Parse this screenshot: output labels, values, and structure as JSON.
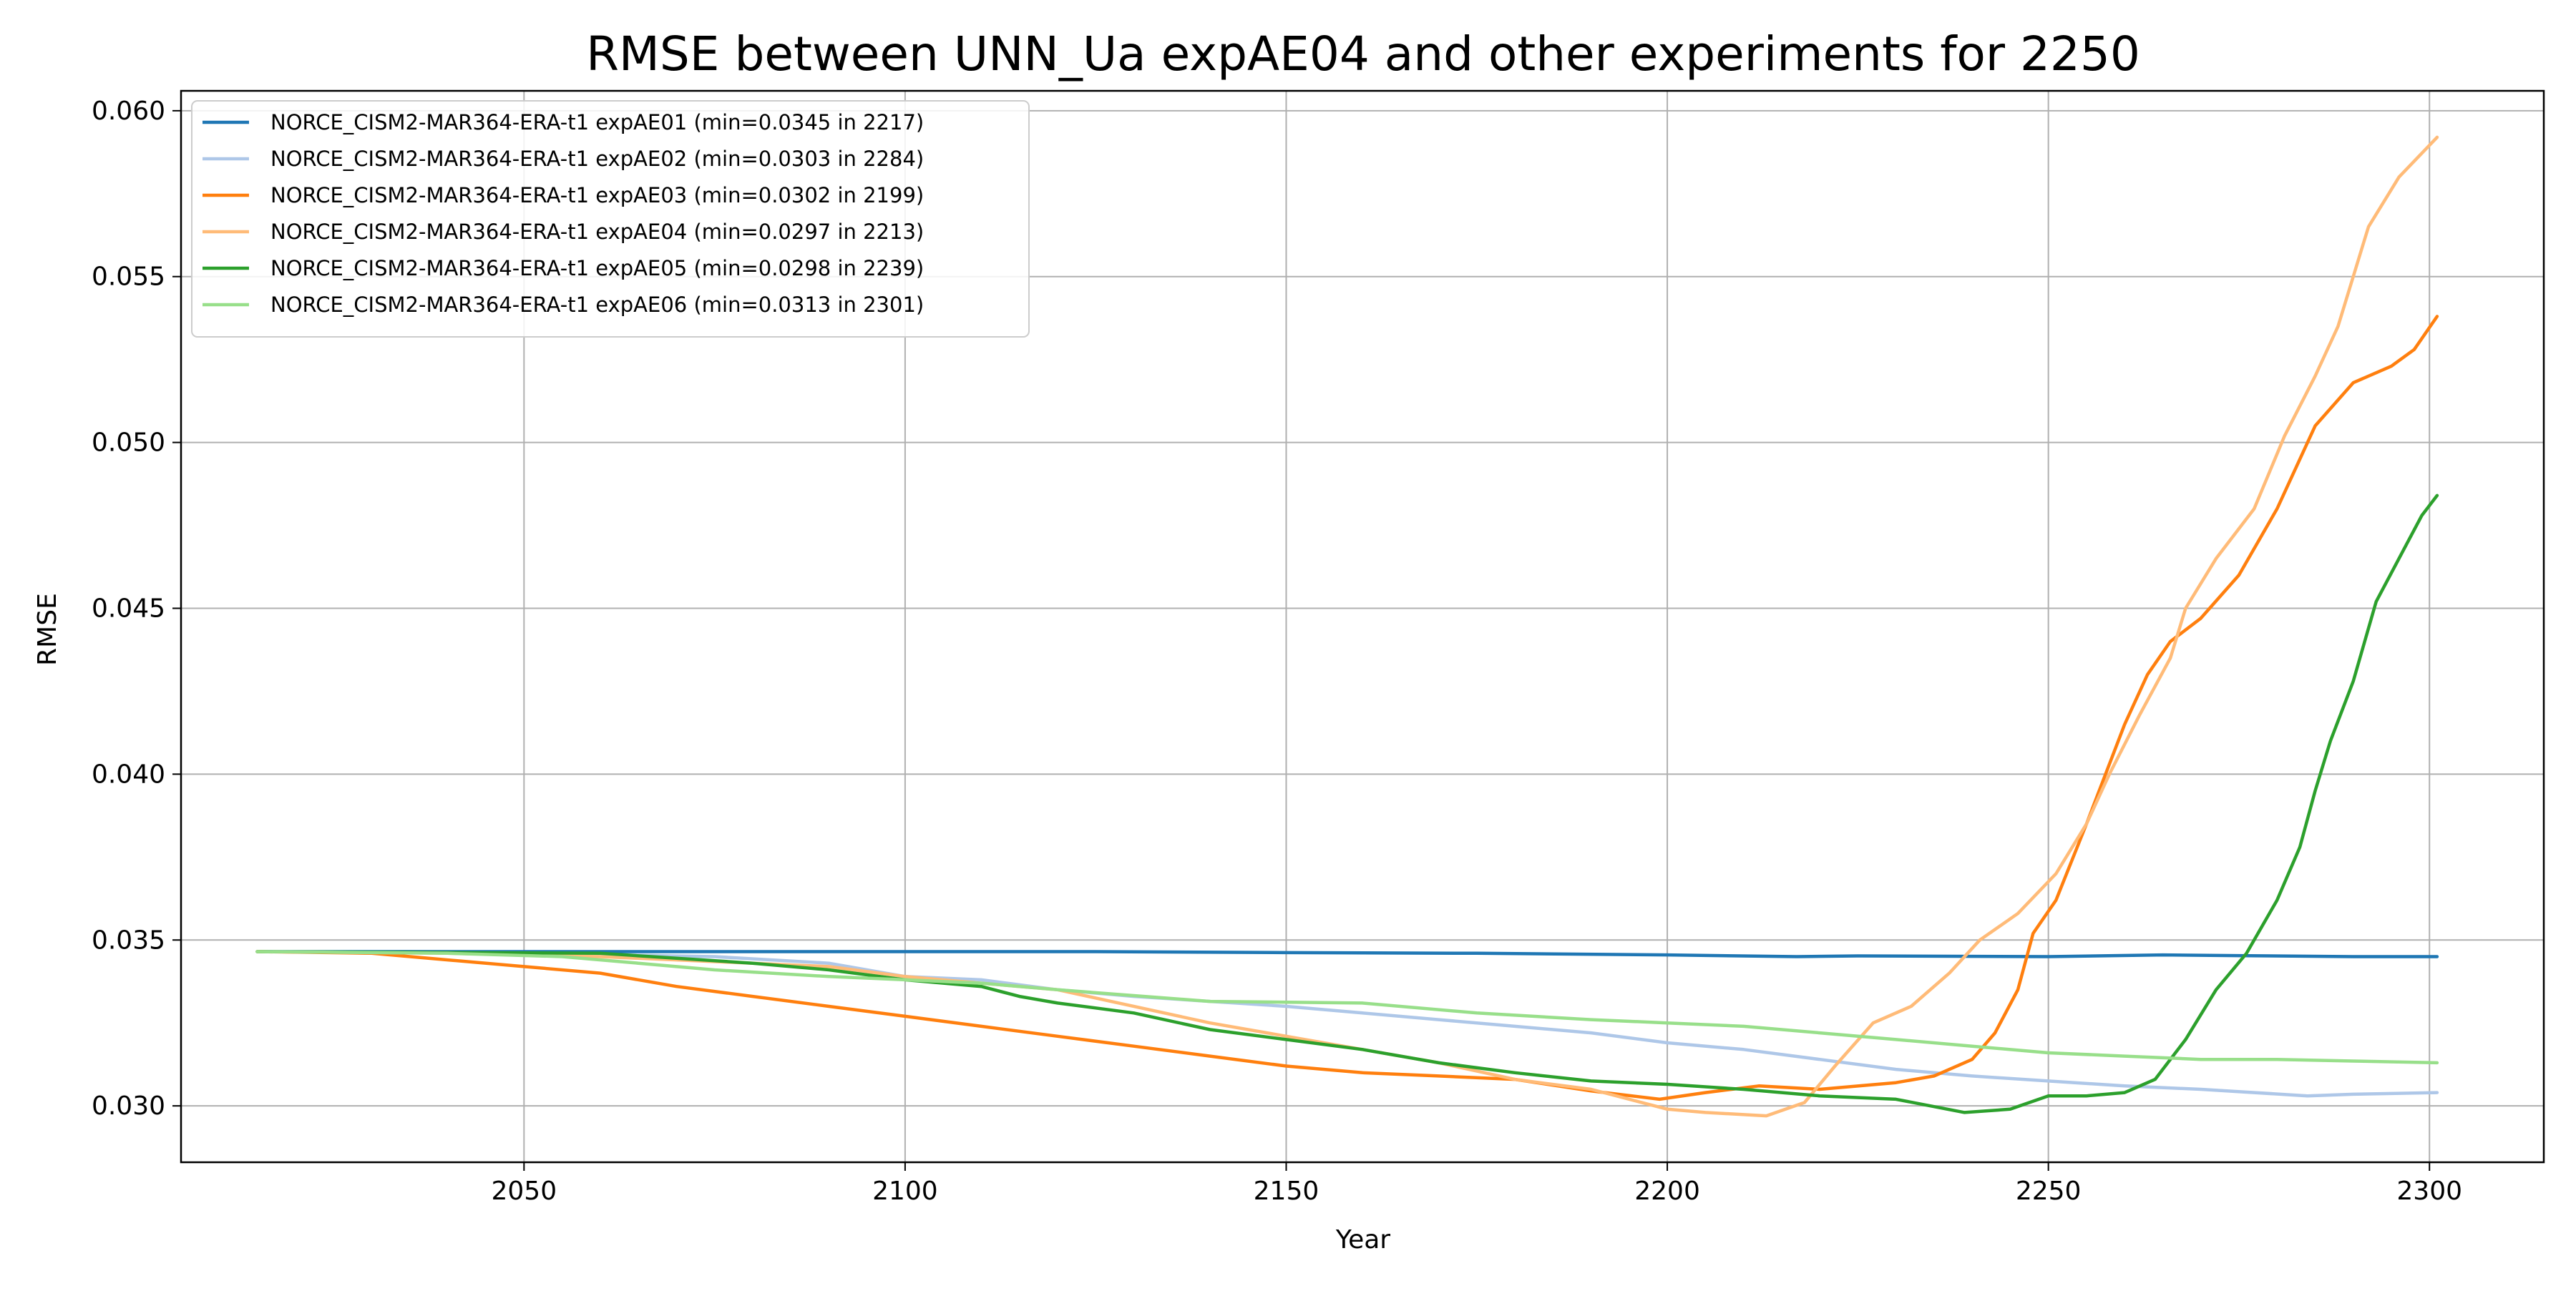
{
  "chart_data": {
    "type": "line",
    "title": "RMSE between UNN_Ua expAE04 and other experiments for 2250",
    "xlabel": "Year",
    "ylabel": "RMSE",
    "xlim": [
      2005,
      2315
    ],
    "ylim": [
      0.0283,
      0.0606
    ],
    "xticks": [
      2050,
      2100,
      2150,
      2200,
      2250,
      2300
    ],
    "yticks": [
      0.03,
      0.035,
      0.04,
      0.045,
      0.05,
      0.055,
      0.06
    ],
    "ytick_labels": [
      "0.030",
      "0.035",
      "0.040",
      "0.045",
      "0.050",
      "0.055",
      "0.060"
    ],
    "grid": true,
    "legend_position": "upper-left",
    "series": [
      {
        "name": "NORCE_CISM2-MAR364-ERA-t1 expAE01 (min=0.0345 in 2217)",
        "color": "#1f77b4",
        "points": [
          [
            2015,
            0.03465
          ],
          [
            2050,
            0.03465
          ],
          [
            2075,
            0.03465
          ],
          [
            2100,
            0.03465
          ],
          [
            2125,
            0.03465
          ],
          [
            2150,
            0.03462
          ],
          [
            2175,
            0.0346
          ],
          [
            2200,
            0.03455
          ],
          [
            2217,
            0.0345
          ],
          [
            2225,
            0.03452
          ],
          [
            2250,
            0.0345
          ],
          [
            2265,
            0.03455
          ],
          [
            2275,
            0.03453
          ],
          [
            2290,
            0.0345
          ],
          [
            2301,
            0.0345
          ]
        ]
      },
      {
        "name": "NORCE_CISM2-MAR364-ERA-t1 expAE02 (min=0.0303 in 2284)",
        "color": "#aec7e8",
        "points": [
          [
            2015,
            0.03465
          ],
          [
            2050,
            0.0346
          ],
          [
            2075,
            0.0345
          ],
          [
            2090,
            0.0343
          ],
          [
            2100,
            0.0339
          ],
          [
            2110,
            0.0338
          ],
          [
            2120,
            0.0335
          ],
          [
            2130,
            0.0333
          ],
          [
            2140,
            0.03315
          ],
          [
            2150,
            0.033
          ],
          [
            2160,
            0.0328
          ],
          [
            2170,
            0.0326
          ],
          [
            2180,
            0.0324
          ],
          [
            2190,
            0.0322
          ],
          [
            2200,
            0.0319
          ],
          [
            2210,
            0.0317
          ],
          [
            2220,
            0.0314
          ],
          [
            2230,
            0.0311
          ],
          [
            2240,
            0.0309
          ],
          [
            2250,
            0.03075
          ],
          [
            2260,
            0.0306
          ],
          [
            2270,
            0.0305
          ],
          [
            2284,
            0.0303
          ],
          [
            2290,
            0.03035
          ],
          [
            2301,
            0.0304
          ]
        ]
      },
      {
        "name": "NORCE_CISM2-MAR364-ERA-t1 expAE03 (min=0.0302 in 2199)",
        "color": "#ff7f0e",
        "points": [
          [
            2015,
            0.03465
          ],
          [
            2030,
            0.0346
          ],
          [
            2040,
            0.0344
          ],
          [
            2050,
            0.0342
          ],
          [
            2060,
            0.034
          ],
          [
            2070,
            0.0336
          ],
          [
            2080,
            0.0333
          ],
          [
            2090,
            0.033
          ],
          [
            2100,
            0.0327
          ],
          [
            2110,
            0.0324
          ],
          [
            2120,
            0.0321
          ],
          [
            2130,
            0.0318
          ],
          [
            2140,
            0.0315
          ],
          [
            2150,
            0.0312
          ],
          [
            2160,
            0.031
          ],
          [
            2170,
            0.0309
          ],
          [
            2180,
            0.0308
          ],
          [
            2190,
            0.03045
          ],
          [
            2199,
            0.0302
          ],
          [
            2205,
            0.0304
          ],
          [
            2212,
            0.0306
          ],
          [
            2220,
            0.0305
          ],
          [
            2230,
            0.0307
          ],
          [
            2235,
            0.0309
          ],
          [
            2240,
            0.0314
          ],
          [
            2243,
            0.0322
          ],
          [
            2246,
            0.0335
          ],
          [
            2248,
            0.0352
          ],
          [
            2251,
            0.0362
          ],
          [
            2255,
            0.0385
          ],
          [
            2260,
            0.0415
          ],
          [
            2263,
            0.043
          ],
          [
            2266,
            0.044
          ],
          [
            2270,
            0.0447
          ],
          [
            2275,
            0.046
          ],
          [
            2280,
            0.048
          ],
          [
            2285,
            0.0505
          ],
          [
            2290,
            0.0518
          ],
          [
            2295,
            0.0523
          ],
          [
            2298,
            0.0528
          ],
          [
            2301,
            0.0538
          ]
        ]
      },
      {
        "name": "NORCE_CISM2-MAR364-ERA-t1 expAE04 (min=0.0297 in 2213)",
        "color": "#ffbb78",
        "points": [
          [
            2015,
            0.03465
          ],
          [
            2040,
            0.0346
          ],
          [
            2060,
            0.0345
          ],
          [
            2080,
            0.0343
          ],
          [
            2090,
            0.0342
          ],
          [
            2100,
            0.0339
          ],
          [
            2110,
            0.0337
          ],
          [
            2120,
            0.0335
          ],
          [
            2140,
            0.0325
          ],
          [
            2150,
            0.0321
          ],
          [
            2160,
            0.0317
          ],
          [
            2170,
            0.0313
          ],
          [
            2180,
            0.0308
          ],
          [
            2190,
            0.0305
          ],
          [
            2200,
            0.0299
          ],
          [
            2205,
            0.0298
          ],
          [
            2213,
            0.0297
          ],
          [
            2218,
            0.0301
          ],
          [
            2222,
            0.0312
          ],
          [
            2227,
            0.0325
          ],
          [
            2232,
            0.033
          ],
          [
            2237,
            0.034
          ],
          [
            2241,
            0.035
          ],
          [
            2246,
            0.0358
          ],
          [
            2251,
            0.037
          ],
          [
            2255,
            0.0385
          ],
          [
            2258,
            0.04
          ],
          [
            2262,
            0.0418
          ],
          [
            2266,
            0.0435
          ],
          [
            2268,
            0.045
          ],
          [
            2272,
            0.0465
          ],
          [
            2277,
            0.048
          ],
          [
            2281,
            0.0502
          ],
          [
            2285,
            0.052
          ],
          [
            2288,
            0.0535
          ],
          [
            2292,
            0.0565
          ],
          [
            2296,
            0.058
          ],
          [
            2301,
            0.0592
          ]
        ]
      },
      {
        "name": "NORCE_CISM2-MAR364-ERA-t1 expAE05 (min=0.0298 in 2239)",
        "color": "#2ca02c",
        "points": [
          [
            2015,
            0.03465
          ],
          [
            2060,
            0.0346
          ],
          [
            2080,
            0.0343
          ],
          [
            2090,
            0.0341
          ],
          [
            2100,
            0.0338
          ],
          [
            2110,
            0.0336
          ],
          [
            2115,
            0.0333
          ],
          [
            2120,
            0.0331
          ],
          [
            2130,
            0.0328
          ],
          [
            2140,
            0.0323
          ],
          [
            2150,
            0.032
          ],
          [
            2160,
            0.0317
          ],
          [
            2170,
            0.0313
          ],
          [
            2180,
            0.031
          ],
          [
            2190,
            0.03075
          ],
          [
            2200,
            0.03065
          ],
          [
            2210,
            0.0305
          ],
          [
            2220,
            0.0303
          ],
          [
            2230,
            0.0302
          ],
          [
            2239,
            0.0298
          ],
          [
            2245,
            0.0299
          ],
          [
            2250,
            0.0303
          ],
          [
            2255,
            0.0303
          ],
          [
            2260,
            0.0304
          ],
          [
            2264,
            0.0308
          ],
          [
            2268,
            0.032
          ],
          [
            2272,
            0.0335
          ],
          [
            2276,
            0.0346
          ],
          [
            2280,
            0.0362
          ],
          [
            2283,
            0.0378
          ],
          [
            2285,
            0.0395
          ],
          [
            2287,
            0.041
          ],
          [
            2290,
            0.0428
          ],
          [
            2293,
            0.0452
          ],
          [
            2296,
            0.0465
          ],
          [
            2299,
            0.0478
          ],
          [
            2301,
            0.0484
          ]
        ]
      },
      {
        "name": "NORCE_CISM2-MAR364-ERA-t1 expAE06 (min=0.0313 in 2301)",
        "color": "#98df8a",
        "points": [
          [
            2015,
            0.03465
          ],
          [
            2040,
            0.0346
          ],
          [
            2055,
            0.0345
          ],
          [
            2065,
            0.0343
          ],
          [
            2075,
            0.0341
          ],
          [
            2090,
            0.0339
          ],
          [
            2100,
            0.0338
          ],
          [
            2110,
            0.0337
          ],
          [
            2120,
            0.0335
          ],
          [
            2140,
            0.03315
          ],
          [
            2160,
            0.0331
          ],
          [
            2175,
            0.0328
          ],
          [
            2190,
            0.0326
          ],
          [
            2200,
            0.0325
          ],
          [
            2210,
            0.0324
          ],
          [
            2220,
            0.0322
          ],
          [
            2230,
            0.032
          ],
          [
            2240,
            0.0318
          ],
          [
            2250,
            0.0316
          ],
          [
            2260,
            0.0315
          ],
          [
            2270,
            0.0314
          ],
          [
            2280,
            0.0314
          ],
          [
            2290,
            0.03135
          ],
          [
            2301,
            0.0313
          ]
        ]
      }
    ]
  }
}
